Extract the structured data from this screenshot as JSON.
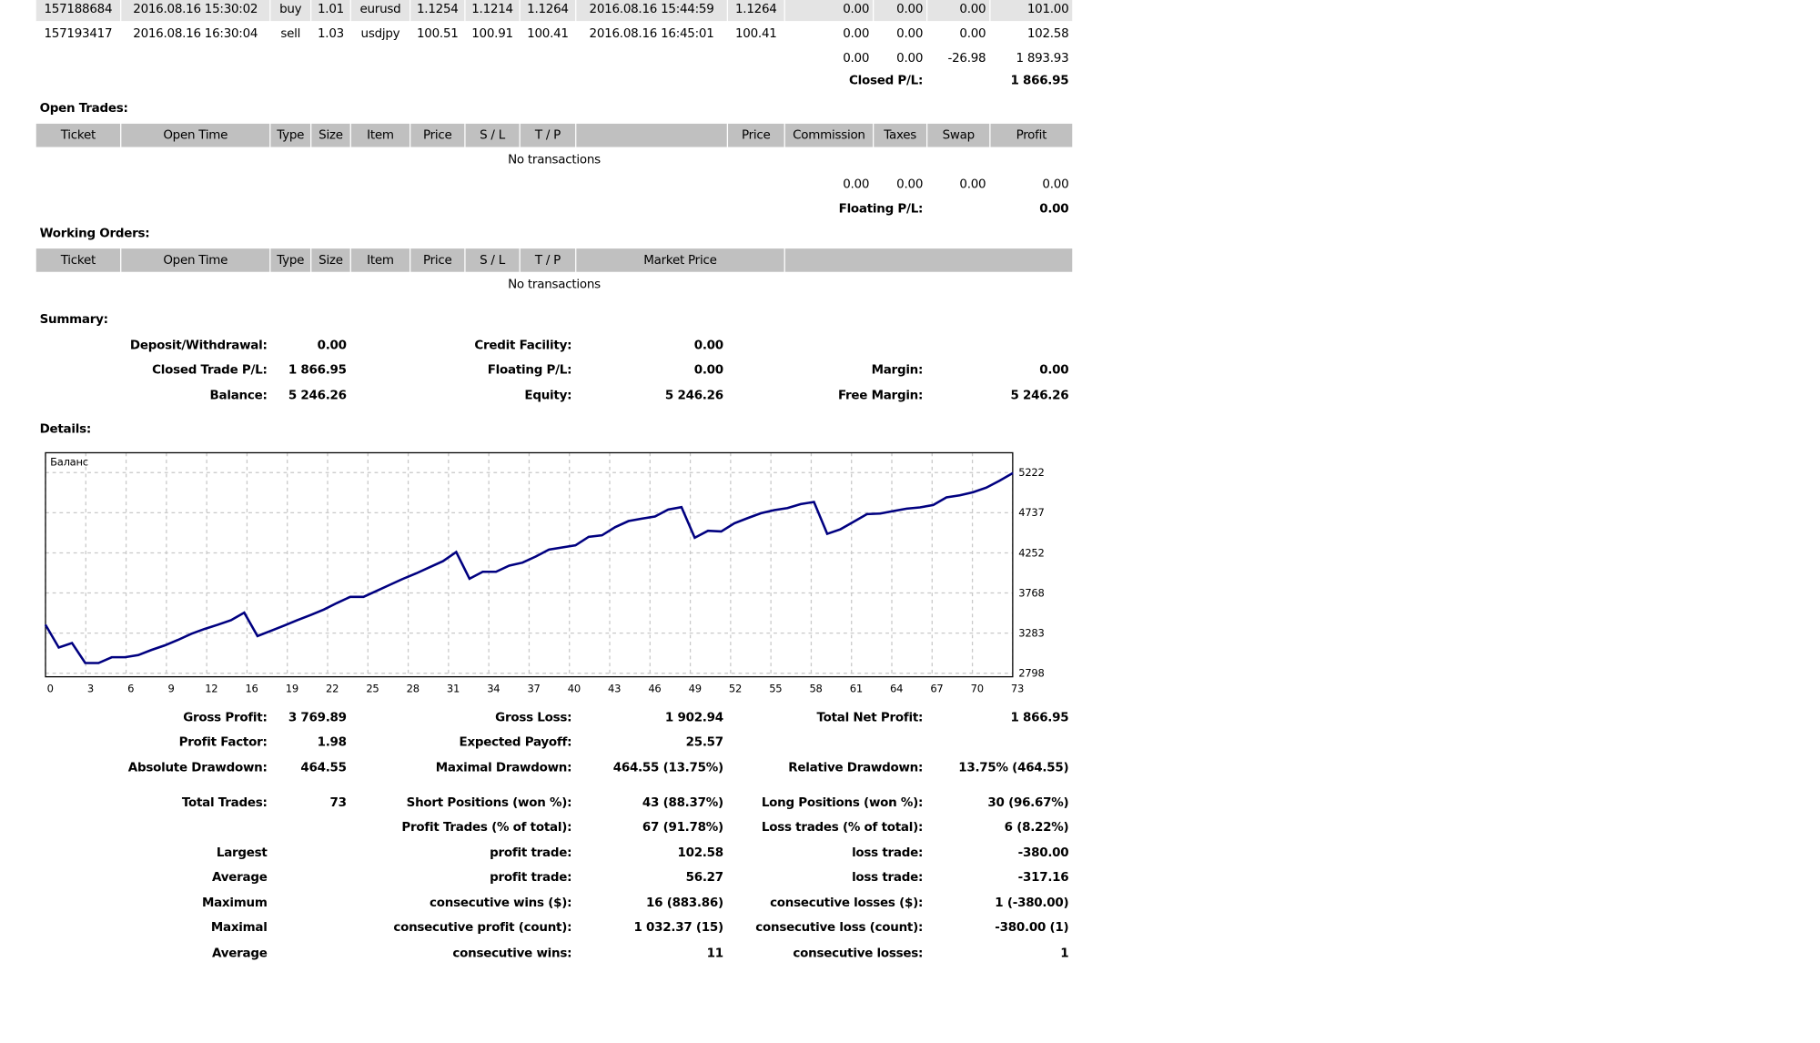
{
  "closed_trades": {
    "rows": [
      [
        "157188684",
        "2016.08.16 15:30:02",
        "buy",
        "1.01",
        "eurusd",
        "1.1254",
        "1.1214",
        "1.1264",
        "2016.08.16 15:44:59",
        "1.1264",
        "0.00",
        "0.00",
        "0.00",
        "101.00"
      ],
      [
        "157193417",
        "2016.08.16 16:30:04",
        "sell",
        "1.03",
        "usdjpy",
        "100.51",
        "100.91",
        "100.41",
        "2016.08.16 16:45:01",
        "100.41",
        "0.00",
        "0.00",
        "0.00",
        "102.58"
      ]
    ],
    "totals": [
      "0.00",
      "0.00",
      "-26.98",
      "1 893.93"
    ],
    "pl_label": "Closed P/L:",
    "pl_value": "1 866.95"
  },
  "open_trades": {
    "title": "Open Trades:",
    "headers": [
      "Ticket",
      "Open Time",
      "Type",
      "Size",
      "Item",
      "Price",
      "S / L",
      "T / P",
      "",
      "Price",
      "Commission",
      "Taxes",
      "Swap",
      "Profit"
    ],
    "empty": "No transactions",
    "totals": [
      "0.00",
      "0.00",
      "0.00",
      "0.00"
    ],
    "pl_label": "Floating P/L:",
    "pl_value": "0.00"
  },
  "working_orders": {
    "title": "Working Orders:",
    "headers": [
      "Ticket",
      "Open Time",
      "Type",
      "Size",
      "Item",
      "Price",
      "S / L",
      "T / P",
      "Market Price",
      ""
    ],
    "empty": "No transactions"
  },
  "summary": {
    "title": "Summary:",
    "rows": [
      [
        "Deposit/Withdrawal:",
        "0.00",
        "Credit Facility:",
        "0.00",
        "",
        ""
      ],
      [
        "Closed Trade P/L:",
        "1 866.95",
        "Floating P/L:",
        "0.00",
        "Margin:",
        "0.00"
      ],
      [
        "Balance:",
        "5 246.26",
        "Equity:",
        "5 246.26",
        "Free Margin:",
        "5 246.26"
      ]
    ]
  },
  "details": {
    "title": "Details:",
    "stats": [
      [
        "Gross Profit:",
        "3 769.89",
        "Gross Loss:",
        "1 902.94",
        "Total Net Profit:",
        "1 866.95"
      ],
      [
        "Profit Factor:",
        "1.98",
        "Expected Payoff:",
        "25.57",
        "",
        ""
      ],
      [
        "Absolute Drawdown:",
        "464.55",
        "Maximal Drawdown:",
        "464.55 (13.75%)",
        "Relative Drawdown:",
        "13.75% (464.55)"
      ],
      [
        "Total Trades:",
        "73",
        "Short Positions (won %):",
        "43 (88.37%)",
        "Long Positions (won %):",
        "30 (96.67%)"
      ],
      [
        "",
        "",
        "Profit Trades (% of total):",
        "67 (91.78%)",
        "Loss trades (% of total):",
        "6 (8.22%)"
      ],
      [
        "Largest",
        "",
        "profit trade:",
        "102.58",
        "loss trade:",
        "-380.00"
      ],
      [
        "Average",
        "",
        "profit trade:",
        "56.27",
        "loss trade:",
        "-317.16"
      ],
      [
        "Maximum",
        "",
        "consecutive wins ($):",
        "16 (883.86)",
        "consecutive losses ($):",
        "1 (-380.00)"
      ],
      [
        "Maximal",
        "",
        "consecutive profit (count):",
        "1 032.37 (15)",
        "consecutive loss (count):",
        "-380.00 (1)"
      ],
      [
        "Average",
        "",
        "consecutive wins:",
        "11",
        "consecutive losses:",
        "1"
      ]
    ]
  },
  "chart_data": {
    "type": "line",
    "title": "Баланс",
    "series": [
      {
        "name": "Баланс",
        "color": "#000080",
        "values": [
          3384,
          3109,
          3164,
          2922,
          2922,
          2992,
          2992,
          3018,
          3080,
          3135,
          3201,
          3274,
          3333,
          3384,
          3439,
          3530,
          3248,
          3310,
          3373,
          3439,
          3501,
          3567,
          3647,
          3721,
          3721,
          3794,
          3867,
          3940,
          4006,
          4079,
          4152,
          4262,
          3940,
          4024,
          4024,
          4098,
          4134,
          4208,
          4292,
          4318,
          4343,
          4446,
          4464,
          4563,
          4636,
          4665,
          4691,
          4775,
          4804,
          4435,
          4519,
          4511,
          4610,
          4672,
          4731,
          4768,
          4793,
          4841,
          4867,
          4482,
          4537,
          4628,
          4720,
          4727,
          4757,
          4786,
          4801,
          4830,
          4922,
          4947,
          4984,
          5039,
          5123,
          5215
        ]
      }
    ],
    "xlim": [
      0,
      73
    ],
    "ylim": [
      2756,
      5461
    ],
    "x_ticks": [
      "0",
      "3",
      "6",
      "9",
      "12",
      "16",
      "19",
      "22",
      "25",
      "28",
      "31",
      "34",
      "37",
      "40",
      "43",
      "46",
      "49",
      "52",
      "55",
      "58",
      "61",
      "64",
      "67",
      "70",
      "73"
    ],
    "y_ticks": [
      2798,
      3283,
      3768,
      4252,
      4737,
      5222
    ],
    "grid": true
  }
}
